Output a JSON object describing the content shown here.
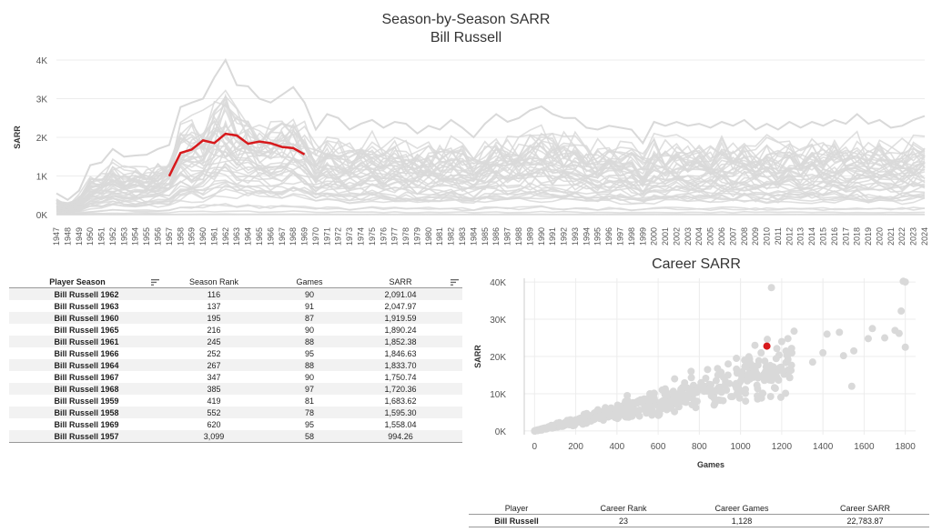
{
  "title": "Season-by-Season SARR",
  "subtitle": "Bill Russell",
  "career_title": "Career SARR",
  "colors": {
    "highlight": "#d7191c",
    "background_series": "#d9d9d9",
    "grid": "#ececec"
  },
  "chart_data": [
    {
      "type": "line",
      "title": "Season-by-Season SARR",
      "subtitle": "Bill Russell",
      "xlabel": "",
      "ylabel": "SARR",
      "x": [
        1947,
        1948,
        1949,
        1950,
        1951,
        1952,
        1953,
        1954,
        1955,
        1956,
        1957,
        1958,
        1959,
        1960,
        1961,
        1962,
        1963,
        1964,
        1965,
        1966,
        1967,
        1968,
        1969,
        1970,
        1971,
        1972,
        1973,
        1974,
        1975,
        1976,
        1977,
        1978,
        1979,
        1980,
        1981,
        1982,
        1983,
        1984,
        1985,
        1986,
        1987,
        1988,
        1989,
        1990,
        1991,
        1992,
        1993,
        1994,
        1995,
        1996,
        1997,
        1998,
        1999,
        2000,
        2001,
        2002,
        2003,
        2004,
        2005,
        2006,
        2007,
        2008,
        2009,
        2010,
        2011,
        2012,
        2013,
        2014,
        2015,
        2016,
        2017,
        2018,
        2019,
        2020,
        2021,
        2022,
        2023,
        2024
      ],
      "ylim": [
        0,
        4000
      ],
      "yticks": [
        "0K",
        "1K",
        "2K",
        "3K",
        "4K"
      ],
      "ytick_values": [
        0,
        1000,
        2000,
        3000,
        4000
      ],
      "grid": true,
      "highlight_series": {
        "name": "Bill Russell",
        "x": [
          1957,
          1958,
          1959,
          1960,
          1961,
          1962,
          1963,
          1964,
          1965,
          1966,
          1967,
          1968,
          1969
        ],
        "values": [
          994.26,
          1595.3,
          1683.62,
          1919.59,
          1852.38,
          2091.04,
          2047.97,
          1833.7,
          1890.24,
          1846.63,
          1750.74,
          1720.36,
          1558.04
        ]
      },
      "envelope_top": [
        550,
        380,
        620,
        1280,
        1350,
        1700,
        1500,
        1530,
        1550,
        1700,
        1800,
        2780,
        2900,
        3000,
        3550,
        4000,
        3350,
        3320,
        3000,
        2900,
        3100,
        3300,
        2900,
        2200,
        2600,
        2500,
        2200,
        2350,
        2450,
        2250,
        2400,
        2350,
        2100,
        2300,
        2200,
        2450,
        2250,
        2000,
        2350,
        2600,
        2400,
        2500,
        2700,
        2800,
        2600,
        2500,
        2500,
        2250,
        2200,
        2300,
        2250,
        2200,
        1850,
        2400,
        2300,
        2400,
        2300,
        2350,
        2250,
        2400,
        2300,
        2450,
        2200,
        2350,
        2200,
        2400,
        2250,
        2400,
        2300,
        2450,
        2350,
        2600,
        2350,
        2450,
        2250,
        2300,
        2450,
        2550
      ]
    },
    {
      "type": "scatter",
      "title": "Career SARR",
      "xlabel": "Games",
      "ylabel": "SARR",
      "xlim": [
        -50,
        1850
      ],
      "ylim": [
        -1000,
        41000
      ],
      "xticks": [
        "0",
        "200",
        "400",
        "600",
        "800",
        "1000",
        "1200",
        "1400",
        "1600",
        "1800"
      ],
      "xtick_values": [
        0,
        200,
        400,
        600,
        800,
        1000,
        1200,
        1400,
        1600,
        1800
      ],
      "yticks": [
        "0K",
        "10K",
        "20K",
        "30K",
        "40K"
      ],
      "ytick_values": [
        0,
        10000,
        20000,
        30000,
        40000
      ],
      "grid": true,
      "highlight_point": {
        "name": "Bill Russell",
        "x": 1128,
        "y": 22783.87
      },
      "outliers": [
        {
          "x": 1150,
          "y": 38500
        },
        {
          "x": 1790,
          "y": 40200
        },
        {
          "x": 1800,
          "y": 40000
        },
        {
          "x": 1780,
          "y": 32200
        },
        {
          "x": 1800,
          "y": 22500
        },
        {
          "x": 1750,
          "y": 27000
        },
        {
          "x": 1770,
          "y": 26200
        },
        {
          "x": 1700,
          "y": 25000
        },
        {
          "x": 1640,
          "y": 27500
        },
        {
          "x": 1620,
          "y": 24800
        },
        {
          "x": 1550,
          "y": 21500
        },
        {
          "x": 1540,
          "y": 12000
        },
        {
          "x": 1500,
          "y": 20200
        },
        {
          "x": 1480,
          "y": 26500
        },
        {
          "x": 1420,
          "y": 26000
        },
        {
          "x": 1400,
          "y": 21000
        },
        {
          "x": 1350,
          "y": 18500
        },
        {
          "x": 1260,
          "y": 26800
        },
        {
          "x": 1230,
          "y": 24800
        },
        {
          "x": 1200,
          "y": 24000
        },
        {
          "x": 1130,
          "y": 24600
        },
        {
          "x": 1100,
          "y": 21000
        },
        {
          "x": 1070,
          "y": 23000
        },
        {
          "x": 1020,
          "y": 19000
        },
        {
          "x": 980,
          "y": 19500
        },
        {
          "x": 1060,
          "y": 17500
        },
        {
          "x": 940,
          "y": 18000
        },
        {
          "x": 420,
          "y": 6000
        },
        {
          "x": 450,
          "y": 9500
        },
        {
          "x": 500,
          "y": 7500
        },
        {
          "x": 560,
          "y": 10000
        },
        {
          "x": 620,
          "y": 11000
        },
        {
          "x": 680,
          "y": 14000
        },
        {
          "x": 760,
          "y": 16000
        },
        {
          "x": 840,
          "y": 16500
        },
        {
          "x": 890,
          "y": 15000
        }
      ]
    }
  ],
  "season_table": {
    "headers": [
      "Player Season",
      "Season Rank",
      "Games",
      "SARR"
    ],
    "rows": [
      [
        "Bill Russell 1962",
        "116",
        "90",
        "2,091.04"
      ],
      [
        "Bill Russell 1963",
        "137",
        "91",
        "2,047.97"
      ],
      [
        "Bill Russell 1960",
        "195",
        "87",
        "1,919.59"
      ],
      [
        "Bill Russell 1965",
        "216",
        "90",
        "1,890.24"
      ],
      [
        "Bill Russell 1961",
        "245",
        "88",
        "1,852.38"
      ],
      [
        "Bill Russell 1966",
        "252",
        "95",
        "1,846.63"
      ],
      [
        "Bill Russell 1964",
        "267",
        "88",
        "1,833.70"
      ],
      [
        "Bill Russell 1967",
        "347",
        "90",
        "1,750.74"
      ],
      [
        "Bill Russell 1968",
        "385",
        "97",
        "1,720.36"
      ],
      [
        "Bill Russell 1959",
        "419",
        "81",
        "1,683.62"
      ],
      [
        "Bill Russell 1958",
        "552",
        "78",
        "1,595.30"
      ],
      [
        "Bill Russell 1969",
        "620",
        "95",
        "1,558.04"
      ],
      [
        "Bill Russell 1957",
        "3,099",
        "58",
        "994.26"
      ]
    ]
  },
  "career_table": {
    "headers": [
      "Player",
      "Career Rank",
      "Career Games",
      "Career SARR"
    ],
    "row": [
      "Bill Russell",
      "23",
      "1,128",
      "22,783.87"
    ]
  }
}
